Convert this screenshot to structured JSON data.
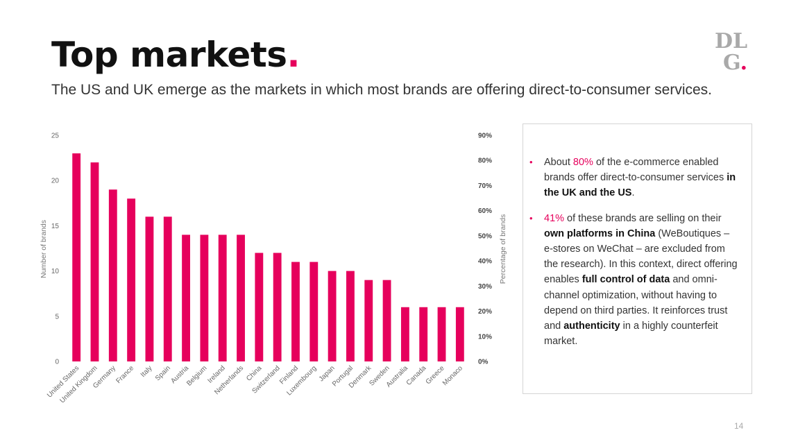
{
  "header": {
    "title": "Top markets",
    "title_dot": ".",
    "subtitle": "The US and UK emerge as the markets in which most brands are offering direct-to-consumer services."
  },
  "logo": {
    "line1": "DL",
    "line2": "G",
    "dot": "."
  },
  "chart_data": {
    "type": "bar",
    "categories": [
      "United States",
      "United Kingdom",
      "Germany",
      "France",
      "Italy",
      "Spain",
      "Austria",
      "Belgium",
      "Ireland",
      "Netherlands",
      "China",
      "Switzerland",
      "Finland",
      "Luxembourg",
      "Japan",
      "Portugal",
      "Denmark",
      "Sweden",
      "Australia",
      "Canada",
      "Greece",
      "Monaco"
    ],
    "values": [
      23,
      22,
      19,
      18,
      16,
      16,
      14,
      14,
      14,
      14,
      12,
      12,
      11,
      11,
      10,
      10,
      9,
      9,
      6,
      6,
      6,
      6
    ],
    "ylabel": "Number of brands",
    "y2label": "Percentage of brands",
    "ylim": [
      0,
      25
    ],
    "yticks": [
      "0",
      "5",
      "10",
      "15",
      "20",
      "25"
    ],
    "y2ticks": [
      "0%",
      "10%",
      "20%",
      "30%",
      "40%",
      "50%",
      "60%",
      "70%",
      "80%",
      "90%"
    ],
    "bar_color": "#e6005c",
    "grid": false
  },
  "callout": {
    "items": [
      {
        "bullet": "•",
        "parts": [
          {
            "text": "About ",
            "style": "normal"
          },
          {
            "text": "80%",
            "style": "pink"
          },
          {
            "text": " of the e-commerce enabled brands offer direct-to-consumer services ",
            "style": "normal"
          },
          {
            "text": "in the UK and the US",
            "style": "strong"
          },
          {
            "text": ".",
            "style": "normal"
          }
        ]
      },
      {
        "bullet": "•",
        "parts": [
          {
            "text": "41%",
            "style": "pink"
          },
          {
            "text": " of these brands are selling on their ",
            "style": "normal"
          },
          {
            "text": "own platforms in China",
            "style": "strong"
          },
          {
            "text": " (WeBoutiques – e-stores on WeChat – are excluded from the research). In this context, direct offering enables ",
            "style": "normal"
          },
          {
            "text": "full control of data",
            "style": "strong"
          },
          {
            "text": " and omni-channel optimization, without having to depend on third parties. It reinforces trust and ",
            "style": "normal"
          },
          {
            "text": "authenticity",
            "style": "strong"
          },
          {
            "text": " in a highly counterfeit market.",
            "style": "normal"
          }
        ]
      }
    ]
  },
  "footer": {
    "page_number": "14"
  },
  "colors": {
    "accent": "#e6005c",
    "logo_gray": "#a9a9a9"
  }
}
